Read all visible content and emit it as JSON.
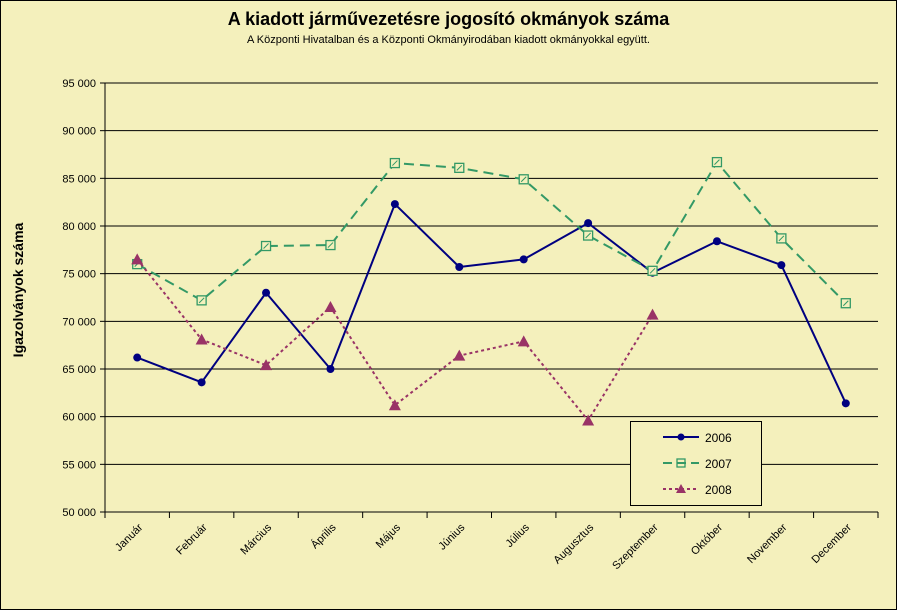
{
  "chart_data": {
    "type": "line",
    "title": "A  kiadott járművezetésre  jogosító okmányok száma",
    "subtitle": "A  Központi Hivatalban és a Központi Okmányirodában kiadott okmányokkal együtt.",
    "ylabel": "Igazolványok száma",
    "xlabel": "",
    "ylim": [
      50000,
      95000
    ],
    "ytick_step": 5000,
    "ytick_labels": [
      "50 000",
      "55 000",
      "60 000",
      "65 000",
      "70 000",
      "75 000",
      "80 000",
      "85 000",
      "90 000",
      "95 000"
    ],
    "categories": [
      "Január",
      "Február",
      "Március",
      "Április",
      "Május",
      "Június",
      "Július",
      "Augusztus",
      "Szeptember",
      "Október",
      "November",
      "December"
    ],
    "grid": "horizontal",
    "legend_position": "bottom-right inside",
    "series": [
      {
        "name": "2006",
        "color": "#000080",
        "dash": "solid",
        "marker": "circle",
        "values": [
          66200,
          63600,
          73000,
          65000,
          82300,
          75700,
          76500,
          80300,
          75100,
          78400,
          75900,
          61400
        ]
      },
      {
        "name": "2007",
        "color": "#339966",
        "dash": "long-dash",
        "marker": "square-open",
        "values": [
          76000,
          72200,
          77900,
          78000,
          86600,
          86100,
          84900,
          79000,
          75300,
          86700,
          78700,
          71900
        ]
      },
      {
        "name": "2008",
        "color": "#993366",
        "dash": "dotted",
        "marker": "triangle",
        "values": [
          76500,
          68100,
          65400,
          71500,
          61200,
          66400,
          67900,
          59600,
          70700,
          null,
          null,
          null
        ]
      }
    ]
  }
}
